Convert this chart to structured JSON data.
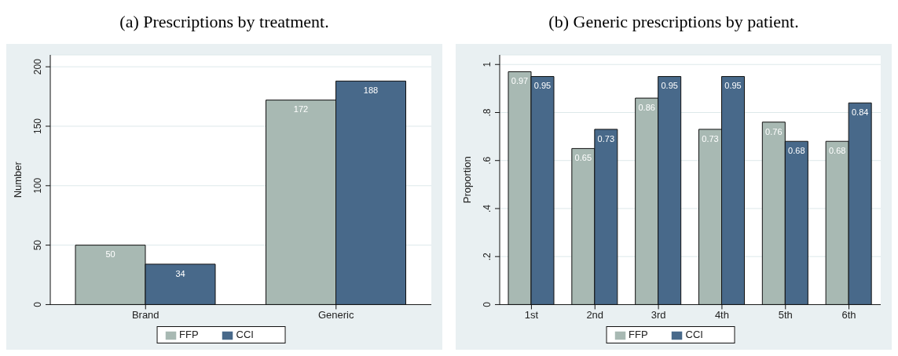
{
  "chart_data": [
    {
      "type": "bar",
      "title": "(a) Prescriptions by treatment.",
      "ylabel": "Number",
      "categories": [
        "Brand",
        "Generic"
      ],
      "series": [
        {
          "name": "FFP",
          "color": "#a8b9b3",
          "values": [
            50,
            172
          ]
        },
        {
          "name": "CCI",
          "color": "#48698a",
          "values": [
            34,
            188
          ]
        }
      ],
      "ylim": [
        0,
        210
      ],
      "yticks": [
        0,
        50,
        100,
        150,
        200
      ],
      "grid": "y",
      "legend": "bottom",
      "data_labels": true
    },
    {
      "type": "bar",
      "title": "(b) Generic prescriptions by patient.",
      "ylabel": "Proportion",
      "categories": [
        "1st",
        "2nd",
        "3rd",
        "4th",
        "5th",
        "6th"
      ],
      "series": [
        {
          "name": "FFP",
          "color": "#a8b9b3",
          "values": [
            0.97,
            0.65,
            0.86,
            0.73,
            0.76,
            0.68
          ]
        },
        {
          "name": "CCI",
          "color": "#48698a",
          "values": [
            0.95,
            0.73,
            0.95,
            0.95,
            0.68,
            0.84
          ]
        }
      ],
      "ylim": [
        0,
        1.04
      ],
      "yticks": [
        0,
        {
          "value": 0.2,
          "label": ".2"
        },
        {
          "value": 0.4,
          "label": ".4"
        },
        {
          "value": 0.6,
          "label": ".6"
        },
        {
          "value": 0.8,
          "label": ".8"
        },
        1
      ],
      "grid": "y",
      "legend": "bottom",
      "data_labels": true
    }
  ]
}
